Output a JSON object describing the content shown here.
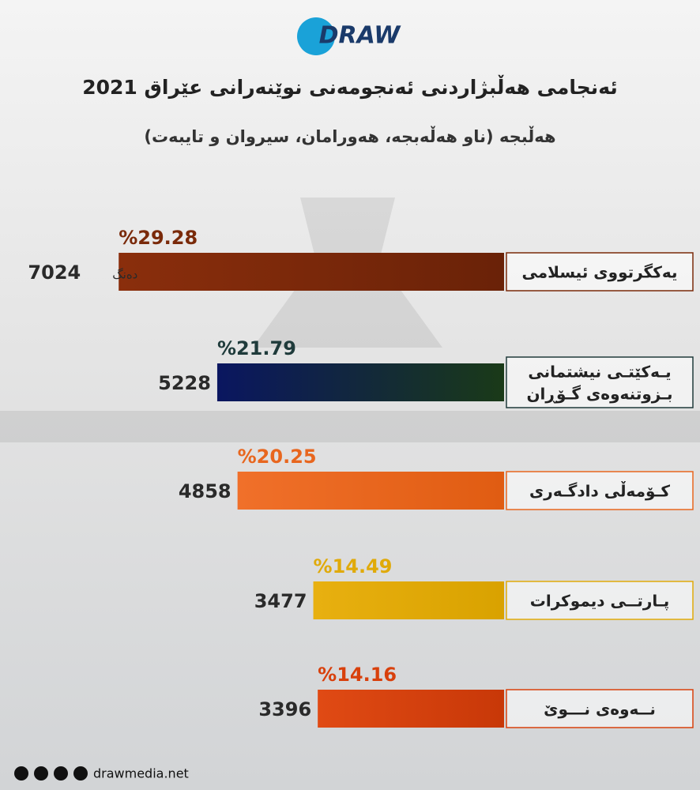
{
  "logo": "DRAW",
  "footer": {
    "site": "drawmedia.net"
  },
  "chart_data": {
    "type": "hbar",
    "title": "ئەنجامی هەڵبژاردنی ئەنجومەنی نوێنەرانی عێراق 2021",
    "subtitle": "هەڵبجە (ناو هەڵەبجە، هەورامان، سیروان و تایبەت)",
    "categories": [
      [
        "یەکگرتووی ئیسلامی"
      ],
      [
        "یـەکێتـی نیشتمانی",
        "بـزوتنەوەی گـۆڕان"
      ],
      [
        "کـۆمەڵی دادگـەری"
      ],
      [
        "پـارتــی دیموکرات"
      ],
      [
        "نــەوەی نـــوێ"
      ]
    ],
    "values": [
      7024,
      5228,
      4858,
      3477,
      3396
    ],
    "vote_unit": "دەنگ",
    "percent": {
      "values": [
        29.28,
        21.79,
        20.25,
        14.49,
        14.16
      ],
      "value_labels": [
        "%29.28",
        "%21.79",
        "%20.25",
        "%14.49",
        "%14.16"
      ]
    },
    "colors": [
      [
        "#8a2e0c",
        "#6a2208"
      ],
      [
        "#0a1660",
        "#1a3a18"
      ],
      [
        "#f0702a",
        "#e05c12"
      ],
      [
        "#e8b010",
        "#d9a200"
      ],
      [
        "#e04a14",
        "#c83808"
      ]
    ],
    "label_colors": [
      "#7a2a0a",
      "#1f3b3b",
      "#e8661e",
      "#e0aa0a",
      "#d8400c"
    ],
    "xlim": [
      0,
      9000
    ]
  }
}
